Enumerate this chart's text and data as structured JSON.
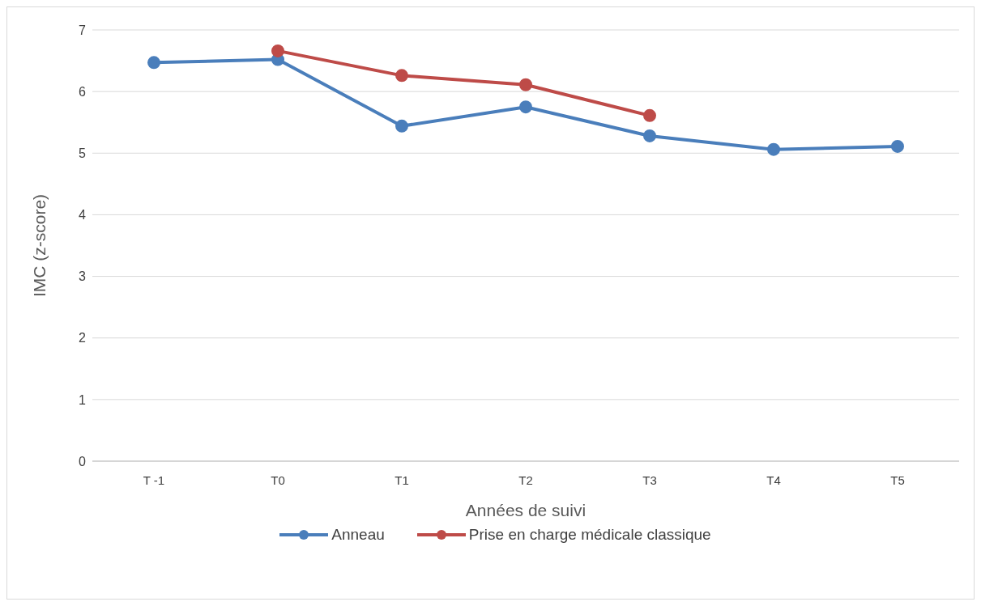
{
  "chart_data": {
    "type": "line",
    "xlabel": "Années de suivi",
    "ylabel": "IMC (z-score)",
    "categories": [
      "T -1",
      "T0",
      "T1",
      "T2",
      "T3",
      "T4",
      "T5"
    ],
    "series": [
      {
        "name": "Anneau",
        "color": "#4a7ebb",
        "values": [
          6.47,
          6.52,
          5.44,
          5.75,
          5.28,
          5.06,
          5.11
        ]
      },
      {
        "name": "Prise en charge médicale classique",
        "color": "#be4b48",
        "values": [
          null,
          6.66,
          6.26,
          6.11,
          5.61,
          null,
          null
        ]
      }
    ],
    "ylim": [
      0,
      7
    ],
    "yticks": [
      0,
      1,
      2,
      3,
      4,
      5,
      6,
      7
    ],
    "grid": "y",
    "legend": "bottom",
    "marker": "circle",
    "line_style": "solid"
  }
}
